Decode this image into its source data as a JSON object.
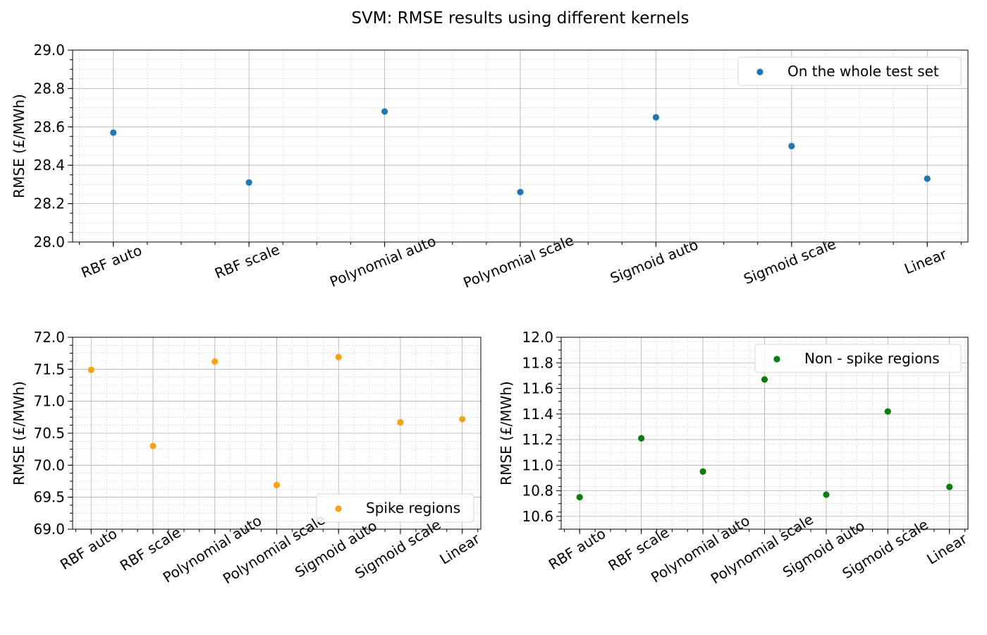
{
  "title": "SVM: RMSE results using different kernels",
  "chart_data": [
    {
      "type": "scatter",
      "categories": [
        "RBF auto",
        "RBF scale",
        "Polynomial auto",
        "Polynomial scale",
        "Sigmoid auto",
        "Sigmoid scale",
        "Linear"
      ],
      "series": [
        {
          "name": "On the whole test set",
          "values": [
            28.57,
            28.31,
            28.68,
            28.26,
            28.65,
            28.5,
            28.33
          ],
          "color": "#1f77b4"
        }
      ],
      "ylabel": "RMSE (£/MWh)",
      "ylim": [
        28.0,
        29.0
      ],
      "yticks": [
        "28.0",
        "28.2",
        "28.4",
        "28.6",
        "28.8",
        "29.0"
      ],
      "grid": true,
      "legend_position": "top-right"
    },
    {
      "type": "scatter",
      "categories": [
        "RBF auto",
        "RBF scale",
        "Polynomial auto",
        "Polynomial scale",
        "Sigmoid auto",
        "Sigmoid scale",
        "Linear"
      ],
      "series": [
        {
          "name": "Spike regions",
          "values": [
            71.49,
            70.3,
            71.62,
            69.69,
            71.69,
            70.67,
            70.72
          ],
          "color": "#f5a31a"
        }
      ],
      "ylabel": "RMSE (£/MWh)",
      "ylim": [
        69.0,
        72.0
      ],
      "yticks": [
        "69.0",
        "69.5",
        "70.0",
        "70.5",
        "71.0",
        "71.5",
        "72.0"
      ],
      "grid": true,
      "legend_position": "bottom-right"
    },
    {
      "type": "scatter",
      "categories": [
        "RBF auto",
        "RBF scale",
        "Polynomial auto",
        "Polynomial scale",
        "Sigmoid auto",
        "Sigmoid scale",
        "Linear"
      ],
      "series": [
        {
          "name": "Non - spike regions",
          "values": [
            10.75,
            11.21,
            10.95,
            11.67,
            10.77,
            11.42,
            10.83
          ],
          "color": "#0a7d0a"
        }
      ],
      "ylabel": "RMSE (£/MWh)",
      "ylim": [
        10.5,
        12.0
      ],
      "yticks": [
        "10.6",
        "10.8",
        "11.0",
        "11.2",
        "11.4",
        "11.6",
        "11.8",
        "12.0"
      ],
      "grid": true,
      "legend_position": "top-right"
    }
  ]
}
